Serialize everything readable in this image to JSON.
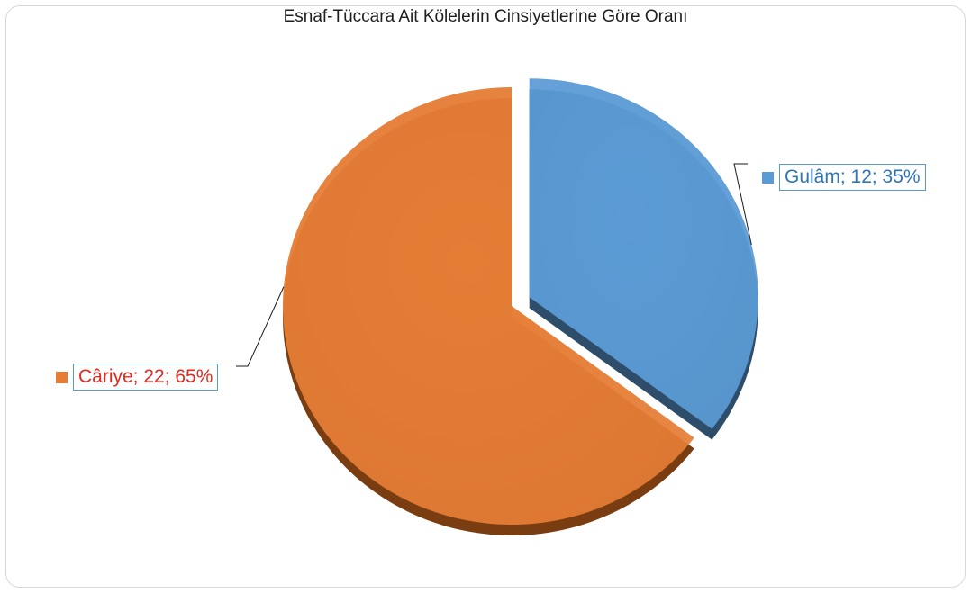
{
  "chart_data": {
    "type": "pie",
    "title": "Esnaf-Tüccara Ait Kölelerin Cinsiyetlerine Göre Oranı",
    "slices": [
      {
        "label": "Gulâm",
        "value": 12,
        "percent": "35%",
        "display": "Gulâm; 12; 35%",
        "color": "#5b9bd5",
        "shade": "#2e4d6b",
        "label_color": "#2e75b6",
        "exploded": true
      },
      {
        "label": "Câriye",
        "value": 22,
        "percent": "65%",
        "display": "Câriye; 22; 65%",
        "color": "#e57d35",
        "shade": "#7a3d12",
        "label_color": "#e02b20",
        "exploded": false
      }
    ],
    "start_angle_deg": 0,
    "legend": "none",
    "data_labels": "outside-with-leader-lines"
  }
}
